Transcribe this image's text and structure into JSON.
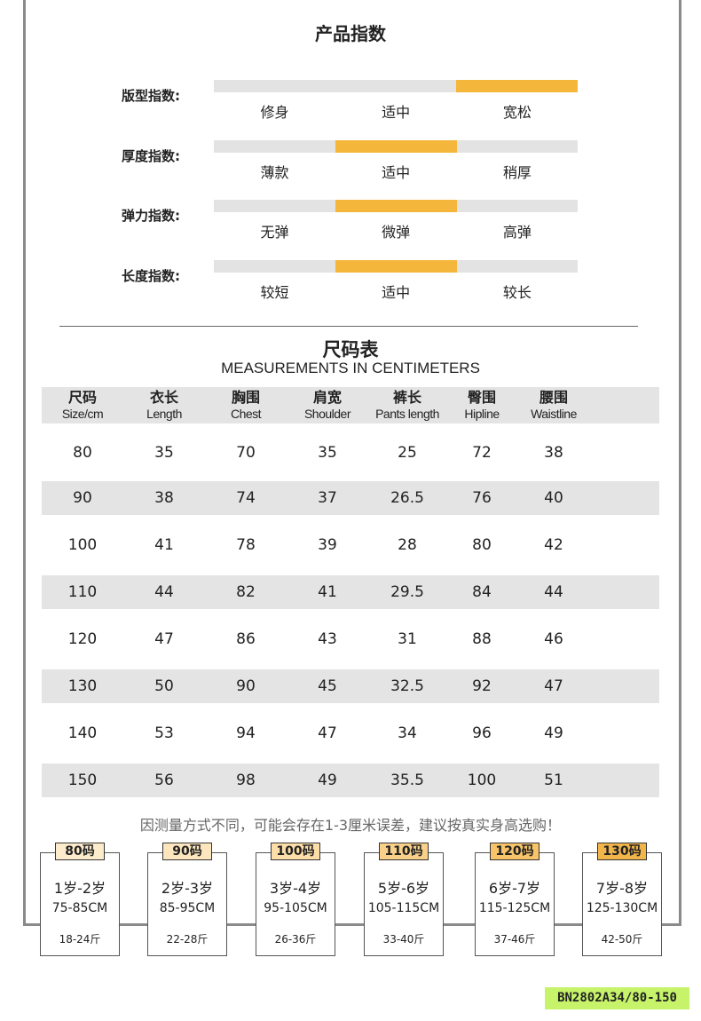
{
  "product_index": {
    "title": "产品指数",
    "rows": [
      {
        "label": "版型指数:",
        "options": [
          "修身",
          "适中",
          "宽松"
        ],
        "selected": 2
      },
      {
        "label": "厚度指数:",
        "options": [
          "薄款",
          "适中",
          "稍厚"
        ],
        "selected": 1
      },
      {
        "label": "弹力指数:",
        "options": [
          "无弹",
          "微弹",
          "高弹"
        ],
        "selected": 1
      },
      {
        "label": "长度指数:",
        "options": [
          "较短",
          "适中",
          "较长"
        ],
        "selected": 1
      }
    ],
    "highlight_color": "#f4b73b"
  },
  "size_chart": {
    "title": "尺码表",
    "subtitle": "MEASUREMENTS IN CENTIMETERS",
    "headers": [
      {
        "cn": "尺码",
        "en": "Size/cm"
      },
      {
        "cn": "衣长",
        "en": "Length"
      },
      {
        "cn": "胸围",
        "en": "Chest"
      },
      {
        "cn": "肩宽",
        "en": "Shoulder"
      },
      {
        "cn": "裤长",
        "en": "Pants length"
      },
      {
        "cn": "臀围",
        "en": "Hipline"
      },
      {
        "cn": "腰围",
        "en": "Waistline"
      }
    ],
    "rows": [
      [
        "80",
        "35",
        "70",
        "35",
        "25",
        "72",
        "38"
      ],
      [
        "90",
        "38",
        "74",
        "37",
        "26.5",
        "76",
        "40"
      ],
      [
        "100",
        "41",
        "78",
        "39",
        "28",
        "80",
        "42"
      ],
      [
        "110",
        "44",
        "82",
        "41",
        "29.5",
        "84",
        "44"
      ],
      [
        "120",
        "47",
        "86",
        "43",
        "31",
        "88",
        "46"
      ],
      [
        "130",
        "50",
        "90",
        "45",
        "32.5",
        "92",
        "47"
      ],
      [
        "140",
        "53",
        "94",
        "47",
        "34",
        "96",
        "49"
      ],
      [
        "150",
        "56",
        "98",
        "49",
        "35.5",
        "100",
        "51"
      ]
    ]
  },
  "note": "因测量方式不同，可能会存在1-3厘米误差，建议按真实身高选购！",
  "size_cards": [
    {
      "tag": "80码",
      "age": "1岁-2岁",
      "height": "75-85CM",
      "weight": "18-24斤",
      "color": "#fdeccb"
    },
    {
      "tag": "90码",
      "age": "2岁-3岁",
      "height": "85-95CM",
      "weight": "22-28斤",
      "color": "#fde6bd"
    },
    {
      "tag": "100码",
      "age": "3岁-4岁",
      "height": "95-105CM",
      "weight": "26-36斤",
      "color": "#fcdea8"
    },
    {
      "tag": "110码",
      "age": "5岁-6岁",
      "height": "105-115CM",
      "weight": "33-40斤",
      "color": "#f9d08a"
    },
    {
      "tag": "120码",
      "age": "6岁-7岁",
      "height": "115-125CM",
      "weight": "37-46斤",
      "color": "#f7c46a"
    },
    {
      "tag": "130码",
      "age": "7岁-8岁",
      "height": "125-130CM",
      "weight": "42-50斤",
      "color": "#f2b54a"
    }
  ],
  "product_code": "BN2802A34/80-150"
}
